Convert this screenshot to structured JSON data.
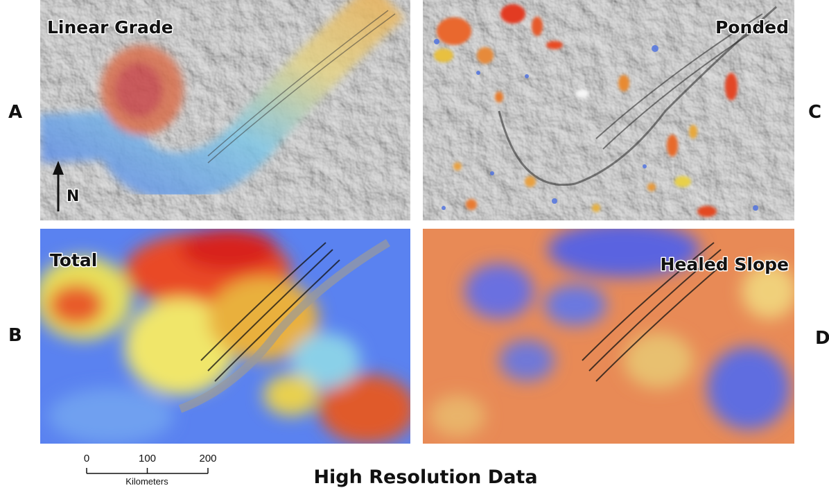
{
  "panels": [
    {
      "letter": "A",
      "title": "Linear Grade"
    },
    {
      "letter": "C",
      "title": "Ponded"
    },
    {
      "letter": "B",
      "title": "Total"
    },
    {
      "letter": "D",
      "title": "Healed Slope"
    }
  ],
  "north_arrow": {
    "label": "N"
  },
  "scale_bar": {
    "ticks": [
      0,
      100,
      200
    ],
    "unit": "Kilometers"
  },
  "caption": "High Resolution Data"
}
